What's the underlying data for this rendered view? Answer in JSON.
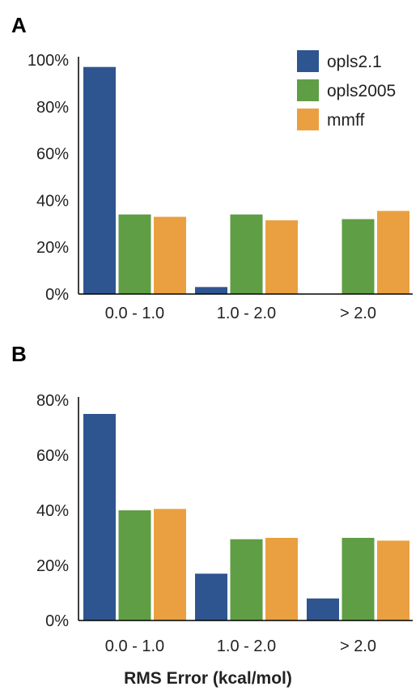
{
  "figure": {
    "xlabel": "RMS Error (kcal/mol)"
  },
  "chart_data": [
    {
      "type": "bar",
      "panel": "A",
      "categories": [
        "0.0 - 1.0",
        "1.0 - 2.0",
        "> 2.0"
      ],
      "ylim": [
        0,
        100
      ],
      "yticks": [
        0,
        20,
        40,
        60,
        80,
        100
      ],
      "ytick_labels": [
        "0%",
        "20%",
        "40%",
        "60%",
        "80%",
        "100%"
      ],
      "grid": false,
      "legend": "top-right",
      "series": [
        {
          "name": "opls2.1",
          "color": "#2f5590",
          "values": [
            97,
            3,
            0
          ]
        },
        {
          "name": "opls2005",
          "color": "#5f9e45",
          "values": [
            34,
            34,
            32
          ]
        },
        {
          "name": "mmff",
          "color": "#eaa040",
          "values": [
            33,
            31.5,
            35.5
          ]
        }
      ]
    },
    {
      "type": "bar",
      "panel": "B",
      "categories": [
        "0.0 - 1.0",
        "1.0 - 2.0",
        "> 2.0"
      ],
      "ylim": [
        0,
        80
      ],
      "yticks": [
        0,
        20,
        40,
        60,
        80
      ],
      "ytick_labels": [
        "0%",
        "20%",
        "40%",
        "60%",
        "80%"
      ],
      "grid": false,
      "legend": "none",
      "series": [
        {
          "name": "opls2.1",
          "color": "#2f5590",
          "values": [
            75,
            17,
            8
          ]
        },
        {
          "name": "opls2005",
          "color": "#5f9e45",
          "values": [
            40,
            29.5,
            30
          ]
        },
        {
          "name": "mmff",
          "color": "#eaa040",
          "values": [
            40.5,
            30,
            29
          ]
        }
      ]
    }
  ]
}
